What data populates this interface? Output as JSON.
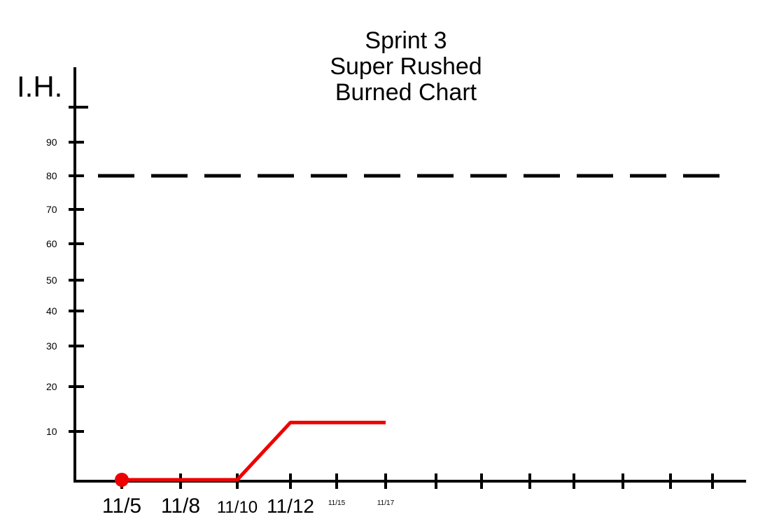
{
  "chart_data": {
    "type": "line",
    "title_lines": [
      "Sprint 3",
      "Super Rushed",
      "Burned Chart"
    ],
    "ylabel": "I.H.",
    "xlabel": "",
    "y_ticks": [
      10,
      20,
      30,
      40,
      50,
      60,
      70,
      80,
      90
    ],
    "x_labels": [
      {
        "date": "11/5",
        "text": "11/5"
      },
      {
        "date": "11/8",
        "text": "11/8"
      },
      {
        "date": "11/10",
        "text": "11/10"
      },
      {
        "date": "11/12",
        "text": "11/12"
      },
      {
        "date": "11/15",
        "text": "11/15"
      },
      {
        "date": "11/17",
        "text": "11/17"
      }
    ],
    "target_line": {
      "y": 80,
      "style": "dashed"
    },
    "series": [
      {
        "color": "#ee0000",
        "points": [
          {
            "x": "11/5",
            "y": 0
          },
          {
            "x": "11/10",
            "y": 0
          },
          {
            "x": "11/12",
            "y": 12
          },
          {
            "x": "11/17",
            "y": 12
          }
        ]
      }
    ],
    "grid": false,
    "legend": "none"
  }
}
